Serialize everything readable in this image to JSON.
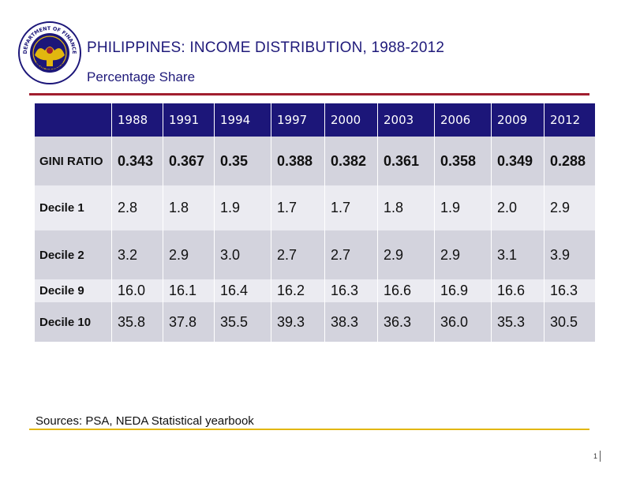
{
  "header": {
    "title": "PHILIPPINES: INCOME DISTRIBUTION, 1988-2012",
    "subtitle": "Percentage Share",
    "seal": {
      "text_top": "DEPARTMENT OF FINANCE",
      "text_bottom": "PHILIPPINES",
      "colors": {
        "ring": "#1c1679",
        "core": "#1c1679",
        "emblem": "#e2b70f",
        "accent": "#a11e2e"
      }
    }
  },
  "table": {
    "headers": [
      "",
      "1988",
      "1991",
      "1994",
      "1997",
      "2000",
      "2003",
      "2006",
      "2009",
      "2012"
    ],
    "rows": [
      {
        "label": "GINI RATIO",
        "values": [
          "0.343",
          "0.367",
          "0.35",
          "0.388",
          "0.382",
          "0.361",
          "0.358",
          "0.349",
          "0.288"
        ]
      },
      {
        "label": "Decile 1",
        "values": [
          "2.8",
          "1.8",
          "1.9",
          "1.7",
          "1.7",
          "1.8",
          "1.9",
          "2.0",
          "2.9"
        ]
      },
      {
        "label": "Decile 2",
        "values": [
          "3.2",
          "2.9",
          "3.0",
          "2.7",
          "2.7",
          "2.9",
          "2.9",
          "3.1",
          "3.9"
        ]
      },
      {
        "label": "Decile 9",
        "values": [
          "16.0",
          "16.1",
          "16.4",
          "16.2",
          "16.3",
          "16.6",
          "16.9",
          "16.6",
          "16.3"
        ]
      },
      {
        "label": "Decile 10",
        "values": [
          "35.8",
          "37.8",
          "35.5",
          "39.3",
          "38.3",
          "36.3",
          "36.0",
          "35.3",
          "30.5"
        ]
      }
    ]
  },
  "footer": {
    "sources": "Sources: PSA, NEDA Statistical yearbook",
    "page_number": "1"
  },
  "colors": {
    "header_bg": "#1c1679",
    "title_text": "#1f1a7a",
    "row_dark": "#d3d3dd",
    "row_light": "#ebebf1",
    "top_rule": "#a11e2e",
    "bottom_rule": "#e2b70f"
  }
}
